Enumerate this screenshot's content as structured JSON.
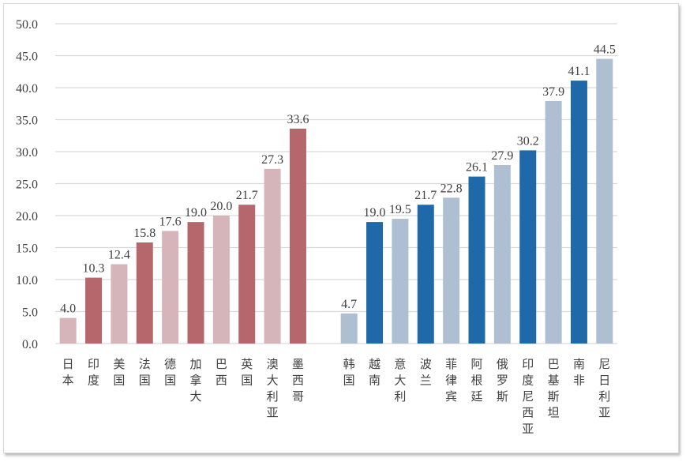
{
  "chart_data": {
    "type": "bar",
    "title": "",
    "xlabel": "",
    "ylabel": "",
    "ylim": [
      0,
      50
    ],
    "yticks": [
      "0.0",
      "5.0",
      "10.0",
      "15.0",
      "20.0",
      "25.0",
      "30.0",
      "35.0",
      "40.0",
      "45.0",
      "50.0"
    ],
    "grid": true,
    "groups": [
      {
        "categories": [
          "日本",
          "印度",
          "美国",
          "法国",
          "德国",
          "加拿大",
          "巴西",
          "英国",
          "澳大利亚",
          "墨西哥"
        ],
        "values": [
          4.0,
          10.3,
          12.4,
          15.8,
          17.6,
          19.0,
          20.0,
          21.7,
          27.3,
          33.6
        ],
        "labels": [
          "4.0",
          "10.3",
          "12.4",
          "15.8",
          "17.6",
          "19.0",
          "20.0",
          "21.7",
          "27.3",
          "33.6"
        ],
        "colors": [
          "#d5b5b9",
          "#b5676c",
          "#d5b5b9",
          "#b5676c",
          "#d5b5b9",
          "#b5676c",
          "#d5b5b9",
          "#b5676c",
          "#d5b5b9",
          "#b5676c"
        ]
      },
      {
        "categories": [
          "韩国",
          "越南",
          "意大利",
          "波兰",
          "菲律宾",
          "阿根廷",
          "俄罗斯",
          "印度尼西亚",
          "巴基斯坦",
          "南非",
          "尼日利亚"
        ],
        "values": [
          4.7,
          19.0,
          19.5,
          21.7,
          22.8,
          26.1,
          27.9,
          30.2,
          37.9,
          41.1,
          44.5
        ],
        "labels": [
          "4.7",
          "19.0",
          "19.5",
          "21.7",
          "22.8",
          "26.1",
          "27.9",
          "30.2",
          "37.9",
          "41.1",
          "44.5"
        ],
        "colors": [
          "#adbfd0",
          "#1f69a8",
          "#adbfd0",
          "#1f69a8",
          "#adbfd0",
          "#1f69a8",
          "#adbfd0",
          "#1f69a8",
          "#adbfd0",
          "#1f69a8",
          "#adbfd0"
        ]
      }
    ]
  }
}
